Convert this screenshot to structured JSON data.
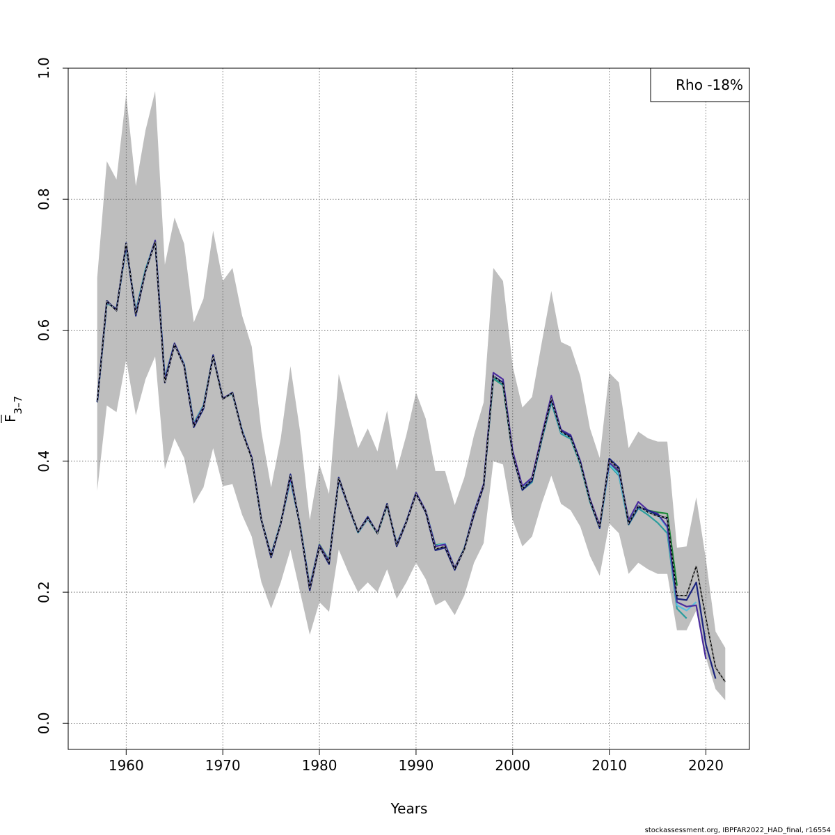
{
  "chart_data": {
    "type": "line",
    "xlabel": "Years",
    "ylabel": "F",
    "ylabel_subscript": "3–7",
    "xlim": [
      1954,
      2024.5
    ],
    "ylim": [
      -0.04,
      1.0
    ],
    "x_ticks": [
      1960,
      1970,
      1980,
      1990,
      2000,
      2010,
      2020
    ],
    "y_ticks": [
      0.0,
      0.2,
      0.4,
      0.6,
      0.8,
      1.0
    ],
    "x_tick_labels": [
      "1960",
      "1970",
      "1980",
      "1990",
      "2000",
      "2010",
      "2020"
    ],
    "y_tick_labels": [
      "0.0",
      "0.2",
      "0.4",
      "0.6",
      "0.8",
      "1.0"
    ],
    "grid": true,
    "legend_placement": "top-right",
    "legend_text": "Rho -18%",
    "source_note": "stockassessment.org, IBPFAR2022_HAD_final, r16554",
    "colors": {
      "band": "#bebebe",
      "grid": "#555555",
      "main": "#000000",
      "peels": [
        "#1a237e",
        "#4b2c9e",
        "#5bc0de",
        "#2a9d9d",
        "#1e8a3a",
        "#8a9a2e"
      ]
    },
    "band": {
      "x": [
        1957,
        1958,
        1959,
        1960,
        1961,
        1962,
        1963,
        1964,
        1965,
        1966,
        1967,
        1968,
        1969,
        1970,
        1971,
        1972,
        1973,
        1974,
        1975,
        1976,
        1977,
        1978,
        1979,
        1980,
        1981,
        1982,
        1983,
        1984,
        1985,
        1986,
        1987,
        1988,
        1989,
        1990,
        1991,
        1992,
        1993,
        1994,
        1995,
        1996,
        1997,
        1998,
        1999,
        2000,
        2001,
        2002,
        2003,
        2004,
        2005,
        2006,
        2007,
        2008,
        2009,
        2010,
        2011,
        2012,
        2013,
        2014,
        2015,
        2016,
        2017,
        2018,
        2019,
        2020,
        2021,
        2022
      ],
      "lower": [
        0.355,
        0.485,
        0.475,
        0.555,
        0.47,
        0.525,
        0.56,
        0.388,
        0.435,
        0.405,
        0.335,
        0.36,
        0.42,
        0.362,
        0.365,
        0.318,
        0.285,
        0.215,
        0.175,
        0.215,
        0.265,
        0.2,
        0.135,
        0.185,
        0.17,
        0.265,
        0.23,
        0.2,
        0.215,
        0.2,
        0.235,
        0.19,
        0.215,
        0.245,
        0.22,
        0.18,
        0.188,
        0.165,
        0.195,
        0.245,
        0.275,
        0.4,
        0.395,
        0.31,
        0.27,
        0.285,
        0.335,
        0.378,
        0.335,
        0.325,
        0.3,
        0.255,
        0.225,
        0.305,
        0.29,
        0.228,
        0.245,
        0.235,
        0.228,
        0.228,
        0.142,
        0.142,
        0.172,
        0.1,
        0.052,
        0.035
      ],
      "upper": [
        0.68,
        0.858,
        0.83,
        0.96,
        0.82,
        0.905,
        0.965,
        0.7,
        0.772,
        0.732,
        0.612,
        0.648,
        0.752,
        0.675,
        0.695,
        0.622,
        0.575,
        0.445,
        0.36,
        0.435,
        0.545,
        0.445,
        0.31,
        0.395,
        0.35,
        0.533,
        0.475,
        0.42,
        0.45,
        0.415,
        0.477,
        0.386,
        0.44,
        0.505,
        0.465,
        0.385,
        0.385,
        0.333,
        0.375,
        0.44,
        0.49,
        0.695,
        0.675,
        0.545,
        0.482,
        0.498,
        0.58,
        0.66,
        0.582,
        0.575,
        0.53,
        0.45,
        0.405,
        0.535,
        0.52,
        0.42,
        0.445,
        0.435,
        0.43,
        0.43,
        0.268,
        0.27,
        0.345,
        0.25,
        0.14,
        0.115
      ]
    },
    "series": [
      {
        "x": [
          1957,
          1958,
          1959,
          1960,
          1961,
          1962,
          1963,
          1964,
          1965,
          1966,
          1967,
          1968,
          1969,
          1970,
          1971,
          1972,
          1973,
          1974,
          1975,
          1976,
          1977,
          1978,
          1979,
          1980,
          1981,
          1982,
          1983,
          1984,
          1985,
          1986,
          1987,
          1988,
          1989,
          1990,
          1991,
          1992,
          1993,
          1994,
          1995,
          1996,
          1997,
          1998,
          1999,
          2000,
          2001,
          2002,
          2003,
          2004,
          2005,
          2006,
          2007,
          2008,
          2009,
          2010,
          2011,
          2012,
          2013,
          2014,
          2015,
          2016,
          2017,
          2018,
          2019,
          2020,
          2021,
          2022
        ],
        "values": [
          0.49,
          0.644,
          0.63,
          0.733,
          0.624,
          0.69,
          0.735,
          0.52,
          0.578,
          0.546,
          0.454,
          0.482,
          0.56,
          0.495,
          0.504,
          0.445,
          0.404,
          0.31,
          0.255,
          0.305,
          0.378,
          0.3,
          0.205,
          0.27,
          0.245,
          0.374,
          0.332,
          0.292,
          0.313,
          0.29,
          0.333,
          0.272,
          0.307,
          0.35,
          0.323,
          0.266,
          0.27,
          0.236,
          0.265,
          0.32,
          0.363,
          0.53,
          0.518,
          0.41,
          0.358,
          0.372,
          0.435,
          0.495,
          0.445,
          0.436,
          0.397,
          0.34,
          0.3,
          0.402,
          0.388,
          0.305,
          0.332,
          0.322,
          0.316,
          0.314,
          0.195,
          0.195,
          0.24,
          0.16,
          0.085,
          0.063
        ]
      },
      {
        "x": [
          1957,
          1958,
          1959,
          1960,
          1961,
          1962,
          1963,
          1964,
          1965,
          1966,
          1967,
          1968,
          1969,
          1970,
          1971,
          1972,
          1973,
          1974,
          1975,
          1976,
          1977,
          1978,
          1979,
          1980,
          1981,
          1982,
          1983,
          1984,
          1985,
          1986,
          1987,
          1988,
          1989,
          1990,
          1991,
          1992,
          1993,
          1994,
          1995,
          1996,
          1997,
          1998,
          1999,
          2000,
          2001,
          2002,
          2003,
          2004,
          2005,
          2006,
          2007,
          2008,
          2009,
          2010,
          2011,
          2012,
          2013,
          2014,
          2015,
          2016,
          2017,
          2018,
          2019,
          2020,
          2021
        ],
        "values": [
          0.49,
          0.645,
          0.63,
          0.733,
          0.622,
          0.69,
          0.735,
          0.52,
          0.578,
          0.546,
          0.452,
          0.48,
          0.562,
          0.495,
          0.505,
          0.445,
          0.405,
          0.31,
          0.253,
          0.305,
          0.38,
          0.3,
          0.203,
          0.27,
          0.243,
          0.375,
          0.332,
          0.292,
          0.315,
          0.29,
          0.335,
          0.27,
          0.307,
          0.35,
          0.322,
          0.264,
          0.268,
          0.234,
          0.266,
          0.318,
          0.362,
          0.53,
          0.52,
          0.41,
          0.356,
          0.37,
          0.434,
          0.494,
          0.446,
          0.438,
          0.398,
          0.34,
          0.298,
          0.404,
          0.39,
          0.304,
          0.33,
          0.325,
          0.318,
          0.312,
          0.19,
          0.188,
          0.215,
          0.12,
          0.068
        ]
      },
      {
        "x": [
          1957,
          1958,
          1959,
          1960,
          1961,
          1962,
          1963,
          1964,
          1965,
          1966,
          1967,
          1968,
          1969,
          1970,
          1971,
          1972,
          1973,
          1974,
          1975,
          1976,
          1977,
          1978,
          1979,
          1980,
          1981,
          1982,
          1983,
          1984,
          1985,
          1986,
          1987,
          1988,
          1989,
          1990,
          1991,
          1992,
          1993,
          1994,
          1995,
          1996,
          1997,
          1998,
          1999,
          2000,
          2001,
          2002,
          2003,
          2004,
          2005,
          2006,
          2007,
          2008,
          2009,
          2010,
          2011,
          2012,
          2013,
          2014,
          2015,
          2016,
          2017,
          2018,
          2019,
          2020
        ],
        "values": [
          0.49,
          0.643,
          0.632,
          0.73,
          0.626,
          0.69,
          0.737,
          0.524,
          0.58,
          0.547,
          0.456,
          0.483,
          0.56,
          0.496,
          0.504,
          0.446,
          0.406,
          0.31,
          0.256,
          0.305,
          0.375,
          0.301,
          0.207,
          0.272,
          0.247,
          0.373,
          0.331,
          0.292,
          0.313,
          0.291,
          0.333,
          0.273,
          0.308,
          0.352,
          0.324,
          0.27,
          0.273,
          0.237,
          0.266,
          0.322,
          0.365,
          0.535,
          0.525,
          0.415,
          0.362,
          0.375,
          0.438,
          0.5,
          0.448,
          0.44,
          0.4,
          0.342,
          0.302,
          0.398,
          0.385,
          0.31,
          0.338,
          0.325,
          0.32,
          0.3,
          0.185,
          0.178,
          0.18,
          0.098
        ]
      },
      {
        "x": [
          1957,
          1958,
          1959,
          1960,
          1961,
          1962,
          1963,
          1964,
          1965,
          1966,
          1967,
          1968,
          1969,
          1970,
          1971,
          1972,
          1973,
          1974,
          1975,
          1976,
          1977,
          1978,
          1979,
          1980,
          1981,
          1982,
          1983,
          1984,
          1985,
          1986,
          1987,
          1988,
          1989,
          1990,
          1991,
          1992,
          1993,
          1994,
          1995,
          1996,
          1997,
          1998,
          1999,
          2000,
          2001,
          2002,
          2003,
          2004,
          2005,
          2006,
          2007,
          2008,
          2009,
          2010,
          2011,
          2012,
          2013,
          2014,
          2015,
          2016,
          2017,
          2018,
          2019
        ],
        "values": [
          0.49,
          0.642,
          0.632,
          0.728,
          0.628,
          0.692,
          0.737,
          0.525,
          0.58,
          0.548,
          0.457,
          0.484,
          0.56,
          0.496,
          0.503,
          0.447,
          0.405,
          0.31,
          0.257,
          0.306,
          0.372,
          0.302,
          0.208,
          0.272,
          0.248,
          0.372,
          0.331,
          0.291,
          0.312,
          0.29,
          0.332,
          0.274,
          0.308,
          0.352,
          0.324,
          0.271,
          0.274,
          0.237,
          0.266,
          0.323,
          0.365,
          0.53,
          0.52,
          0.412,
          0.36,
          0.373,
          0.436,
          0.493,
          0.444,
          0.436,
          0.397,
          0.34,
          0.3,
          0.395,
          0.38,
          0.305,
          0.332,
          0.322,
          0.318,
          0.298,
          0.18,
          0.172,
          0.185
        ]
      },
      {
        "x": [
          1957,
          1958,
          1959,
          1960,
          1961,
          1962,
          1963,
          1964,
          1965,
          1966,
          1967,
          1968,
          1969,
          1970,
          1971,
          1972,
          1973,
          1974,
          1975,
          1976,
          1977,
          1978,
          1979,
          1980,
          1981,
          1982,
          1983,
          1984,
          1985,
          1986,
          1987,
          1988,
          1989,
          1990,
          1991,
          1992,
          1993,
          1994,
          1995,
          1996,
          1997,
          1998,
          1999,
          2000,
          2001,
          2002,
          2003,
          2004,
          2005,
          2006,
          2007,
          2008,
          2009,
          2010,
          2011,
          2012,
          2013,
          2014,
          2015,
          2016,
          2017,
          2018
        ],
        "values": [
          0.49,
          0.642,
          0.632,
          0.728,
          0.628,
          0.692,
          0.736,
          0.526,
          0.58,
          0.548,
          0.458,
          0.485,
          0.56,
          0.496,
          0.503,
          0.447,
          0.405,
          0.31,
          0.257,
          0.306,
          0.371,
          0.302,
          0.208,
          0.272,
          0.248,
          0.372,
          0.331,
          0.291,
          0.312,
          0.29,
          0.332,
          0.274,
          0.308,
          0.352,
          0.324,
          0.271,
          0.274,
          0.236,
          0.266,
          0.322,
          0.364,
          0.527,
          0.516,
          0.41,
          0.356,
          0.368,
          0.432,
          0.49,
          0.442,
          0.434,
          0.395,
          0.338,
          0.298,
          0.394,
          0.378,
          0.303,
          0.328,
          0.318,
          0.306,
          0.29,
          0.175,
          0.16
        ]
      },
      {
        "x": [
          1957,
          1958,
          1959,
          1960,
          1961,
          1962,
          1963,
          1964,
          1965,
          1966,
          1967,
          1968,
          1969,
          1970,
          1971,
          1972,
          1973,
          1974,
          1975,
          1976,
          1977,
          1978,
          1979,
          1980,
          1981,
          1982,
          1983,
          1984,
          1985,
          1986,
          1987,
          1988,
          1989,
          1990,
          1991,
          1992,
          1993,
          1994,
          1995,
          1996,
          1997,
          1998,
          1999,
          2000,
          2001,
          2002,
          2003,
          2004,
          2005,
          2006,
          2007,
          2008,
          2009,
          2010,
          2011,
          2012,
          2013,
          2014,
          2015,
          2016,
          2017
        ],
        "values": [
          0.49,
          0.641,
          0.633,
          0.727,
          0.629,
          0.693,
          0.736,
          0.527,
          0.58,
          0.548,
          0.458,
          0.485,
          0.56,
          0.496,
          0.503,
          0.447,
          0.405,
          0.31,
          0.257,
          0.306,
          0.371,
          0.302,
          0.209,
          0.273,
          0.249,
          0.372,
          0.331,
          0.291,
          0.312,
          0.29,
          0.332,
          0.274,
          0.308,
          0.352,
          0.324,
          0.272,
          0.274,
          0.237,
          0.267,
          0.322,
          0.364,
          0.526,
          0.516,
          0.41,
          0.357,
          0.37,
          0.433,
          0.49,
          0.443,
          0.435,
          0.396,
          0.338,
          0.3,
          0.397,
          0.382,
          0.308,
          0.33,
          0.325,
          0.322,
          0.32,
          0.21
        ]
      }
    ]
  }
}
